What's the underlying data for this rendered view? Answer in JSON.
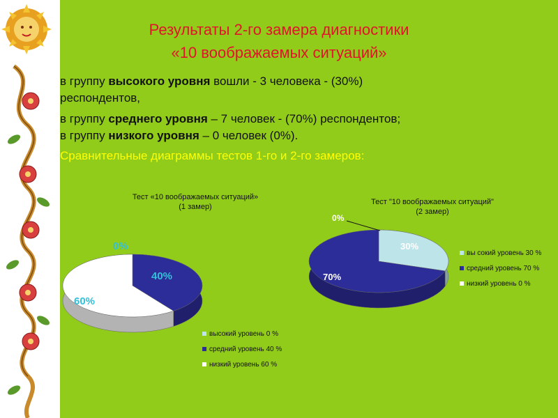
{
  "title": {
    "line1": "Результаты 2-го замера диагностики",
    "line2": "«10 воображаемых ситуаций»"
  },
  "body": {
    "line1_pre": "в  группу  ",
    "line1_bold": "высокого уровня",
    "line1_post": " вошли - 3 человека - (30%)",
    "line2": "респондентов,",
    "line3_pre": "в группу  ",
    "line3_bold": "среднего уровня",
    "line3_post": " – 7 человек -   (70%) респондентов;",
    "line4_pre": " в группу ",
    "line4_bold": "низкого уровня",
    "line4_post": " – 0 человек (0%).",
    "line5": "Сравнительные диаграммы тестов 1-го и 2-го замеров:"
  },
  "colors": {
    "background": "#92cc1a",
    "title": "#e0142a",
    "highlight": "#ffff00",
    "high_level": "#bde4e8",
    "mid_level": "#2d2d9a",
    "low_level": "#ffffff"
  },
  "chart_data": [
    {
      "type": "pie",
      "title": "Тест «10 воображаемых ситуаций»",
      "subtitle": "(1 замер)",
      "categories": [
        "высокий уровень 0 %",
        "средний уровень 40 %",
        "низкий уровень 60 %"
      ],
      "values": [
        0,
        40,
        60
      ],
      "data_labels": [
        "0%",
        "40%",
        "60%"
      ],
      "legend_position": "bottom-right"
    },
    {
      "type": "pie",
      "title": "Тест \"10 воображаемых ситуаций\"",
      "subtitle": "(2 замер)",
      "categories": [
        "вы сокий уровень 30 %",
        "средний уровень 70 %",
        "низкий уровень 0 %"
      ],
      "values": [
        30,
        70,
        0
      ],
      "data_labels": [
        "30%",
        "70%",
        "0%"
      ],
      "legend_position": "right"
    }
  ]
}
